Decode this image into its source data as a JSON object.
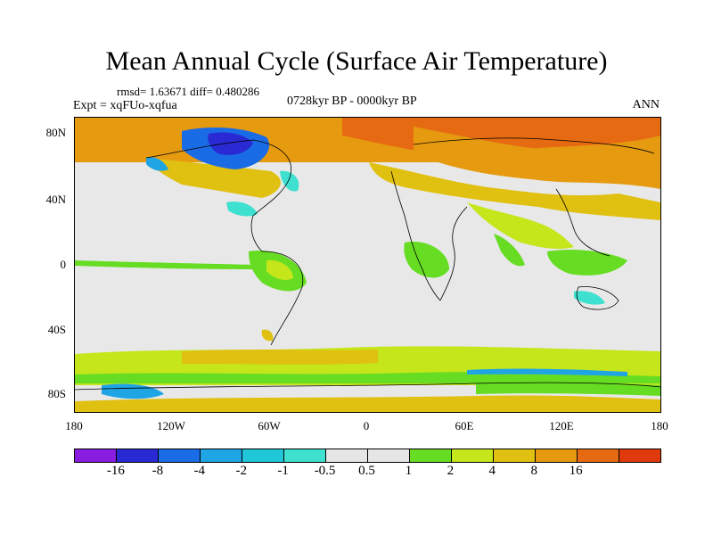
{
  "title": "Mean Annual Cycle (Surface Air Temperature)",
  "stats": "rmsd= 1.63671 diff= 0.480286",
  "experiment": "Expt = xqFUo-xqfua",
  "period": "0728kyr BP - 0000kyr BP",
  "season": "ANN",
  "lat_labels": [
    "80N",
    "40N",
    "0",
    "40S",
    "80S"
  ],
  "lon_labels": [
    "180",
    "120W",
    "60W",
    "0",
    "60E",
    "120E",
    "180"
  ],
  "legend": {
    "colors": [
      "#8a1be0",
      "#2a2ad4",
      "#1a6be6",
      "#1fa4e4",
      "#1fc7d9",
      "#3ee0d0",
      "#e6e6e6",
      "#e6e6e6",
      "#66dd22",
      "#c4e61a",
      "#e0c010",
      "#e69a10",
      "#e66a12",
      "#e03a0c"
    ],
    "labels": [
      "-16",
      "-8",
      "-4",
      "-2",
      "-1",
      "-0.5",
      "0.5",
      "1",
      "2",
      "4",
      "8",
      "16"
    ]
  },
  "colors": {
    "orange": "#e69a10",
    "dark_orange": "#e66a12",
    "yellow": "#e0c010",
    "lime": "#c4e61a",
    "green": "#66dd22",
    "cyan": "#3ee0d0",
    "light_blue": "#1fa4e4",
    "blue": "#1a6be6",
    "dark_blue": "#2a2ad4",
    "neutral": "#e6e6e6"
  }
}
